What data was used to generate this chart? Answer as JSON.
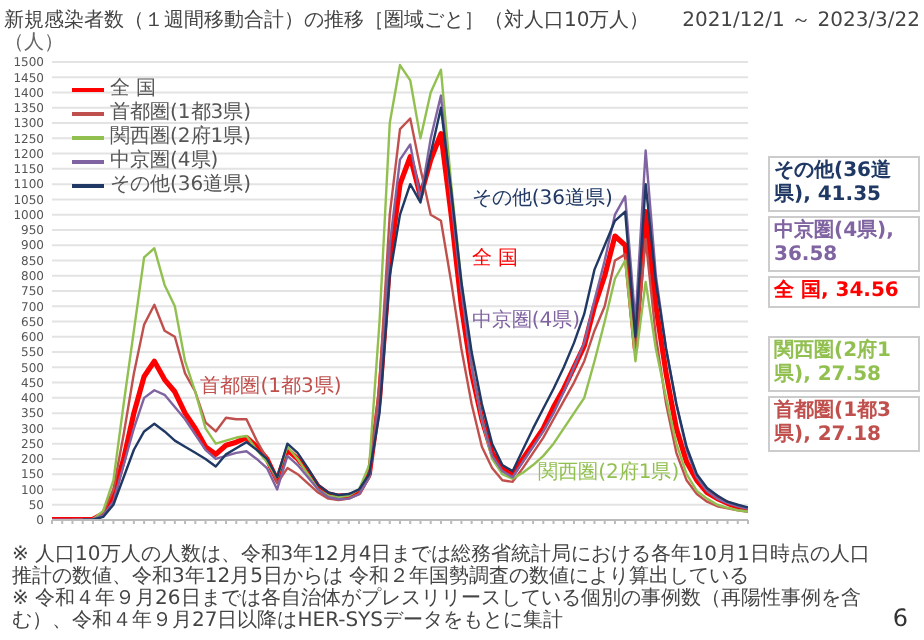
{
  "chart_data": {
    "type": "line",
    "title": "新規感染者数（１週間移動合計）の推移［圏域ごと］（対人口10万人）",
    "subtitle": "2021/12/1 ～ 2023/3/22",
    "ylabel": "（人）",
    "categories": [
      null,
      null,
      null,
      null,
      null,
      null,
      null,
      null,
      null,
      null,
      null,
      null,
      null,
      null,
      null,
      null,
      null,
      null,
      null,
      null,
      null,
      null,
      null,
      null,
      null,
      null,
      null,
      null,
      null,
      null,
      null,
      null,
      null,
      null,
      null,
      null,
      null,
      null,
      null,
      null,
      null,
      null,
      null,
      null,
      null,
      null,
      null,
      null,
      null,
      null,
      null,
      null,
      null,
      null,
      null,
      null,
      null,
      null,
      null,
      null,
      null,
      null,
      null,
      null,
      null,
      null,
      null,
      null,
      null
    ],
    "series": [
      {
        "name": "全 国",
        "color": "#ff0000",
        "values": [
          1,
          1,
          1,
          1,
          2,
          20,
          80,
          200,
          350,
          470,
          520,
          460,
          420,
          350,
          300,
          240,
          215,
          245,
          255,
          270,
          240,
          200,
          130,
          230,
          200,
          160,
          110,
          85,
          78,
          80,
          90,
          150,
          400,
          850,
          1100,
          1190,
          1060,
          1180,
          1265,
          1000,
          700,
          480,
          330,
          220,
          170,
          150,
          200,
          250,
          300,
          370,
          430,
          500,
          570,
          700,
          800,
          930,
          900,
          560,
          1010,
          700,
          480,
          300,
          190,
          130,
          90,
          70,
          55,
          42,
          34.56
        ]
      },
      {
        "name": "首都圏(1都3県)",
        "color": "#c0504d",
        "values": [
          null,
          null,
          1,
          2,
          3,
          25,
          100,
          280,
          480,
          640,
          705,
          620,
          600,
          480,
          420,
          320,
          290,
          335,
          330,
          330,
          260,
          200,
          120,
          170,
          150,
          120,
          90,
          70,
          65,
          70,
          85,
          140,
          450,
          1000,
          1280,
          1315,
          1150,
          1000,
          980,
          780,
          560,
          380,
          240,
          170,
          130,
          125,
          170,
          220,
          270,
          330,
          390,
          450,
          520,
          620,
          700,
          850,
          870,
          540,
          920,
          600,
          380,
          220,
          130,
          85,
          60,
          45,
          38,
          32,
          27.18
        ]
      },
      {
        "name": "関西圏(2府1県)",
        "color": "#92c050",
        "values": [
          null,
          null,
          null,
          null,
          2,
          30,
          130,
          380,
          620,
          860,
          890,
          770,
          700,
          520,
          420,
          300,
          250,
          260,
          270,
          275,
          230,
          190,
          140,
          240,
          200,
          150,
          100,
          80,
          75,
          80,
          100,
          180,
          650,
          1300,
          1490,
          1440,
          1250,
          1400,
          1475,
          1100,
          780,
          500,
          330,
          200,
          150,
          135,
          155,
          180,
          210,
          250,
          300,
          350,
          400,
          520,
          650,
          790,
          850,
          520,
          780,
          560,
          400,
          250,
          150,
          95,
          70,
          50,
          40,
          32,
          27.58
        ]
      },
      {
        "name": "中京圏(4県)",
        "color": "#8064a2",
        "values": [
          1,
          1,
          1,
          1,
          2,
          15,
          60,
          180,
          300,
          400,
          425,
          410,
          370,
          330,
          280,
          230,
          200,
          210,
          220,
          225,
          200,
          170,
          100,
          210,
          180,
          140,
          100,
          75,
          68,
          70,
          85,
          140,
          380,
          900,
          1180,
          1230,
          1050,
          1250,
          1390,
          1050,
          750,
          500,
          330,
          210,
          160,
          140,
          190,
          240,
          290,
          350,
          420,
          500,
          580,
          720,
          850,
          1000,
          1060,
          650,
          1210,
          800,
          560,
          380,
          230,
          140,
          95,
          70,
          55,
          45,
          36.58
        ]
      },
      {
        "name": "その他(36道県)",
        "color": "#1f3864",
        "values": [
          null,
          null,
          null,
          1,
          1,
          10,
          50,
          140,
          230,
          290,
          315,
          290,
          260,
          240,
          220,
          200,
          175,
          215,
          235,
          255,
          230,
          200,
          140,
          250,
          220,
          170,
          115,
          90,
          82,
          85,
          100,
          150,
          350,
          800,
          1000,
          1100,
          1040,
          1200,
          1350,
          1080,
          780,
          550,
          380,
          250,
          180,
          160,
          230,
          300,
          365,
          430,
          500,
          580,
          675,
          820,
          900,
          980,
          1010,
          600,
          1100,
          780,
          560,
          380,
          240,
          150,
          105,
          80,
          60,
          50,
          41.35
        ]
      }
    ],
    "ylim": [
      0,
      1500
    ],
    "yticks": [
      0,
      50,
      100,
      150,
      200,
      250,
      300,
      350,
      400,
      450,
      500,
      550,
      600,
      650,
      700,
      750,
      800,
      850,
      900,
      950,
      1000,
      1050,
      1100,
      1150,
      1200,
      1250,
      1300,
      1350,
      1400,
      1450,
      1500
    ],
    "grid": "y",
    "legend": "top left",
    "marker": "none",
    "line_style": "solid",
    "annotations": [
      "首都圏(1都3県)",
      "その他(36道県)",
      "全 国",
      "中京圏(4県)",
      "関西圏(2府1県)",
      "その他(36道県), 41.35",
      "中京圏(4県), 36.58",
      "全 国, 34.56",
      "関西圏(2府1県), 27.58",
      "首都圏(1都3県), 27.18",
      "※ 人口10万人の人数は、令和3年12月4日までは総務省統計局における各年10月1日時点の人口推計の数値、令和3年12月5日からは 令和２年国勢調査の数値により算出している",
      "※ 令和４年９月26日までは各自治体がプレスリリースしている個別の事例数（再陽性事例を含む）、令和４年９月27日以降はHER-SYSデータをもとに集計",
      "6"
    ]
  }
}
